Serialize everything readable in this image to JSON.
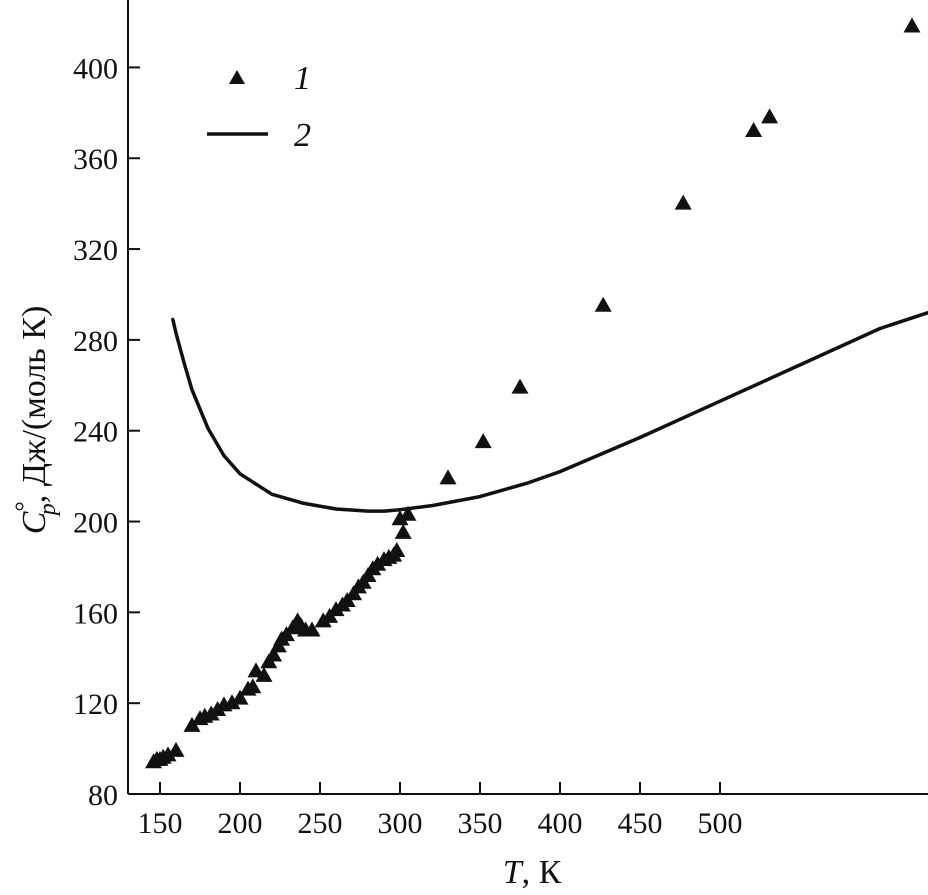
{
  "chart_data": {
    "type": "scatter",
    "title": "",
    "xlabel_var": "T",
    "xlabel_unit": ", К",
    "ylabel_var": "C",
    "ylabel_sup": "°",
    "ylabel_sub": "p",
    "ylabel_unit": ", Дж/(моль К)",
    "xlim": [
      130,
      630
    ],
    "ylim": [
      80,
      420
    ],
    "x_ticks": [
      150,
      200,
      250,
      300,
      350,
      400,
      450,
      500
    ],
    "y_ticks": [
      80,
      120,
      160,
      200,
      240,
      280,
      320,
      360,
      400
    ],
    "grid": false,
    "legend_position": "top-left",
    "colors": {
      "ink": "#111111",
      "background": "#ffffff"
    },
    "series": [
      {
        "name": "1",
        "marker": "triangle",
        "type": "scatter",
        "points": [
          [
            146,
            94
          ],
          [
            148,
            95
          ],
          [
            150,
            95
          ],
          [
            152,
            96
          ],
          [
            155,
            97
          ],
          [
            160,
            99
          ],
          [
            170,
            110
          ],
          [
            175,
            113
          ],
          [
            178,
            114
          ],
          [
            182,
            115
          ],
          [
            186,
            117
          ],
          [
            190,
            119
          ],
          [
            195,
            120
          ],
          [
            200,
            122
          ],
          [
            205,
            126
          ],
          [
            208,
            127
          ],
          [
            210,
            134
          ],
          [
            215,
            132
          ],
          [
            218,
            138
          ],
          [
            221,
            141
          ],
          [
            224,
            145
          ],
          [
            226,
            148
          ],
          [
            229,
            150
          ],
          [
            233,
            153
          ],
          [
            236,
            156
          ],
          [
            238,
            154
          ],
          [
            241,
            152
          ],
          [
            245,
            152
          ],
          [
            252,
            156
          ],
          [
            256,
            158
          ],
          [
            260,
            161
          ],
          [
            264,
            163
          ],
          [
            267,
            165
          ],
          [
            271,
            168
          ],
          [
            274,
            171
          ],
          [
            277,
            173
          ],
          [
            280,
            176
          ],
          [
            283,
            179
          ],
          [
            286,
            181
          ],
          [
            290,
            183
          ],
          [
            293,
            184
          ],
          [
            296,
            185
          ],
          [
            298,
            187
          ],
          [
            300,
            201
          ],
          [
            302,
            195
          ],
          [
            305,
            203
          ],
          [
            330,
            219
          ],
          [
            352,
            235
          ],
          [
            375,
            259
          ],
          [
            427,
            295
          ],
          [
            477,
            340
          ],
          [
            521,
            372
          ],
          [
            531,
            378
          ],
          [
            620,
            418
          ]
        ]
      },
      {
        "name": "2",
        "marker": "line",
        "type": "line",
        "points": [
          [
            158,
            289
          ],
          [
            160,
            283
          ],
          [
            165,
            270
          ],
          [
            170,
            258
          ],
          [
            180,
            241
          ],
          [
            190,
            229
          ],
          [
            200,
            221
          ],
          [
            220,
            212
          ],
          [
            240,
            208
          ],
          [
            260,
            205.5
          ],
          [
            280,
            204.6
          ],
          [
            290,
            204.6
          ],
          [
            300,
            205.2
          ],
          [
            320,
            207
          ],
          [
            350,
            211
          ],
          [
            380,
            217
          ],
          [
            400,
            222
          ],
          [
            450,
            237
          ],
          [
            500,
            253
          ],
          [
            550,
            269
          ],
          [
            600,
            285
          ],
          [
            630,
            292
          ]
        ]
      }
    ]
  }
}
